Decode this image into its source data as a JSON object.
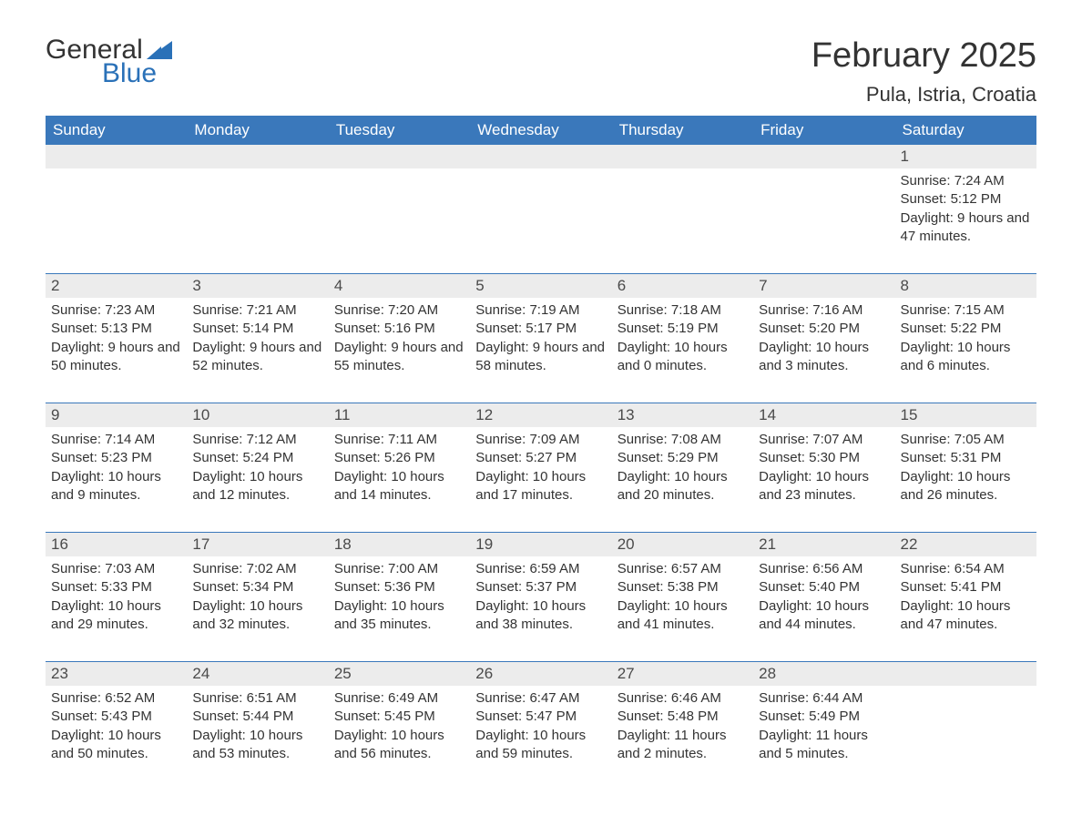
{
  "logo": {
    "text_general": "General",
    "text_blue": "Blue",
    "shape_color": "#2a71b8"
  },
  "title": {
    "month": "February 2025",
    "location": "Pula, Istria, Croatia"
  },
  "colors": {
    "header_bg": "#3a78bb",
    "header_text": "#ffffff",
    "daynum_bg": "#ececec",
    "text": "#333333",
    "rule": "#3a78bb"
  },
  "day_headers": [
    "Sunday",
    "Monday",
    "Tuesday",
    "Wednesday",
    "Thursday",
    "Friday",
    "Saturday"
  ],
  "weeks": [
    [
      {
        "n": "",
        "sunrise": "",
        "sunset": "",
        "daylight": ""
      },
      {
        "n": "",
        "sunrise": "",
        "sunset": "",
        "daylight": ""
      },
      {
        "n": "",
        "sunrise": "",
        "sunset": "",
        "daylight": ""
      },
      {
        "n": "",
        "sunrise": "",
        "sunset": "",
        "daylight": ""
      },
      {
        "n": "",
        "sunrise": "",
        "sunset": "",
        "daylight": ""
      },
      {
        "n": "",
        "sunrise": "",
        "sunset": "",
        "daylight": ""
      },
      {
        "n": "1",
        "sunrise": "Sunrise: 7:24 AM",
        "sunset": "Sunset: 5:12 PM",
        "daylight": "Daylight: 9 hours and 47 minutes."
      }
    ],
    [
      {
        "n": "2",
        "sunrise": "Sunrise: 7:23 AM",
        "sunset": "Sunset: 5:13 PM",
        "daylight": "Daylight: 9 hours and 50 minutes."
      },
      {
        "n": "3",
        "sunrise": "Sunrise: 7:21 AM",
        "sunset": "Sunset: 5:14 PM",
        "daylight": "Daylight: 9 hours and 52 minutes."
      },
      {
        "n": "4",
        "sunrise": "Sunrise: 7:20 AM",
        "sunset": "Sunset: 5:16 PM",
        "daylight": "Daylight: 9 hours and 55 minutes."
      },
      {
        "n": "5",
        "sunrise": "Sunrise: 7:19 AM",
        "sunset": "Sunset: 5:17 PM",
        "daylight": "Daylight: 9 hours and 58 minutes."
      },
      {
        "n": "6",
        "sunrise": "Sunrise: 7:18 AM",
        "sunset": "Sunset: 5:19 PM",
        "daylight": "Daylight: 10 hours and 0 minutes."
      },
      {
        "n": "7",
        "sunrise": "Sunrise: 7:16 AM",
        "sunset": "Sunset: 5:20 PM",
        "daylight": "Daylight: 10 hours and 3 minutes."
      },
      {
        "n": "8",
        "sunrise": "Sunrise: 7:15 AM",
        "sunset": "Sunset: 5:22 PM",
        "daylight": "Daylight: 10 hours and 6 minutes."
      }
    ],
    [
      {
        "n": "9",
        "sunrise": "Sunrise: 7:14 AM",
        "sunset": "Sunset: 5:23 PM",
        "daylight": "Daylight: 10 hours and 9 minutes."
      },
      {
        "n": "10",
        "sunrise": "Sunrise: 7:12 AM",
        "sunset": "Sunset: 5:24 PM",
        "daylight": "Daylight: 10 hours and 12 minutes."
      },
      {
        "n": "11",
        "sunrise": "Sunrise: 7:11 AM",
        "sunset": "Sunset: 5:26 PM",
        "daylight": "Daylight: 10 hours and 14 minutes."
      },
      {
        "n": "12",
        "sunrise": "Sunrise: 7:09 AM",
        "sunset": "Sunset: 5:27 PM",
        "daylight": "Daylight: 10 hours and 17 minutes."
      },
      {
        "n": "13",
        "sunrise": "Sunrise: 7:08 AM",
        "sunset": "Sunset: 5:29 PM",
        "daylight": "Daylight: 10 hours and 20 minutes."
      },
      {
        "n": "14",
        "sunrise": "Sunrise: 7:07 AM",
        "sunset": "Sunset: 5:30 PM",
        "daylight": "Daylight: 10 hours and 23 minutes."
      },
      {
        "n": "15",
        "sunrise": "Sunrise: 7:05 AM",
        "sunset": "Sunset: 5:31 PM",
        "daylight": "Daylight: 10 hours and 26 minutes."
      }
    ],
    [
      {
        "n": "16",
        "sunrise": "Sunrise: 7:03 AM",
        "sunset": "Sunset: 5:33 PM",
        "daylight": "Daylight: 10 hours and 29 minutes."
      },
      {
        "n": "17",
        "sunrise": "Sunrise: 7:02 AM",
        "sunset": "Sunset: 5:34 PM",
        "daylight": "Daylight: 10 hours and 32 minutes."
      },
      {
        "n": "18",
        "sunrise": "Sunrise: 7:00 AM",
        "sunset": "Sunset: 5:36 PM",
        "daylight": "Daylight: 10 hours and 35 minutes."
      },
      {
        "n": "19",
        "sunrise": "Sunrise: 6:59 AM",
        "sunset": "Sunset: 5:37 PM",
        "daylight": "Daylight: 10 hours and 38 minutes."
      },
      {
        "n": "20",
        "sunrise": "Sunrise: 6:57 AM",
        "sunset": "Sunset: 5:38 PM",
        "daylight": "Daylight: 10 hours and 41 minutes."
      },
      {
        "n": "21",
        "sunrise": "Sunrise: 6:56 AM",
        "sunset": "Sunset: 5:40 PM",
        "daylight": "Daylight: 10 hours and 44 minutes."
      },
      {
        "n": "22",
        "sunrise": "Sunrise: 6:54 AM",
        "sunset": "Sunset: 5:41 PM",
        "daylight": "Daylight: 10 hours and 47 minutes."
      }
    ],
    [
      {
        "n": "23",
        "sunrise": "Sunrise: 6:52 AM",
        "sunset": "Sunset: 5:43 PM",
        "daylight": "Daylight: 10 hours and 50 minutes."
      },
      {
        "n": "24",
        "sunrise": "Sunrise: 6:51 AM",
        "sunset": "Sunset: 5:44 PM",
        "daylight": "Daylight: 10 hours and 53 minutes."
      },
      {
        "n": "25",
        "sunrise": "Sunrise: 6:49 AM",
        "sunset": "Sunset: 5:45 PM",
        "daylight": "Daylight: 10 hours and 56 minutes."
      },
      {
        "n": "26",
        "sunrise": "Sunrise: 6:47 AM",
        "sunset": "Sunset: 5:47 PM",
        "daylight": "Daylight: 10 hours and 59 minutes."
      },
      {
        "n": "27",
        "sunrise": "Sunrise: 6:46 AM",
        "sunset": "Sunset: 5:48 PM",
        "daylight": "Daylight: 11 hours and 2 minutes."
      },
      {
        "n": "28",
        "sunrise": "Sunrise: 6:44 AM",
        "sunset": "Sunset: 5:49 PM",
        "daylight": "Daylight: 11 hours and 5 minutes."
      },
      {
        "n": "",
        "sunrise": "",
        "sunset": "",
        "daylight": ""
      }
    ]
  ]
}
